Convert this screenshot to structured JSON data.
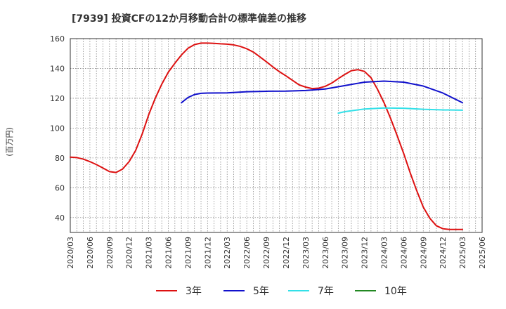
{
  "chart_data": {
    "type": "line",
    "title": "[7939]  投資CFの12か月移動合計の標準偏差の推移",
    "ylabel": "(百万円)",
    "xlabel": "",
    "ylim": [
      30,
      160
    ],
    "yticks": [
      40,
      60,
      80,
      100,
      120,
      140,
      160
    ],
    "xlim": [
      "2020-03",
      "2025-06"
    ],
    "xticks": [
      "2020/03",
      "2020/06",
      "2020/09",
      "2020/12",
      "2021/03",
      "2021/06",
      "2021/09",
      "2021/12",
      "2022/03",
      "2022/06",
      "2022/09",
      "2022/12",
      "2023/03",
      "2023/06",
      "2023/09",
      "2023/12",
      "2024/03",
      "2024/06",
      "2024/09",
      "2024/12",
      "2025/03",
      "2025/06"
    ],
    "grid": true,
    "legend_position": "bottom",
    "series": [
      {
        "name": "3年",
        "color": "#dd1111",
        "x": [
          "2020-03",
          "2020-04",
          "2020-05",
          "2020-06",
          "2020-07",
          "2020-08",
          "2020-09",
          "2020-10",
          "2020-11",
          "2020-12",
          "2021-01",
          "2021-02",
          "2021-03",
          "2021-04",
          "2021-05",
          "2021-06",
          "2021-07",
          "2021-08",
          "2021-09",
          "2021-10",
          "2021-11",
          "2021-12",
          "2022-01",
          "2022-02",
          "2022-03",
          "2022-04",
          "2022-05",
          "2022-06",
          "2022-07",
          "2022-08",
          "2022-09",
          "2022-10",
          "2022-11",
          "2022-12",
          "2023-01",
          "2023-02",
          "2023-03",
          "2023-04",
          "2023-05",
          "2023-06",
          "2023-07",
          "2023-08",
          "2023-09",
          "2023-10",
          "2023-11",
          "2023-12",
          "2024-01",
          "2024-02",
          "2024-03",
          "2024-04",
          "2024-05",
          "2024-06",
          "2024-07",
          "2024-08",
          "2024-09",
          "2024-10",
          "2024-11",
          "2024-12",
          "2025-01",
          "2025-02",
          "2025-03"
        ],
        "values": [
          80.5,
          80.2,
          79.2,
          77.5,
          75.5,
          73.2,
          70.8,
          70.2,
          72.5,
          77.5,
          85,
          96,
          109,
          120,
          129.5,
          137.5,
          143.5,
          149,
          153.5,
          156,
          157,
          157,
          156.8,
          156.5,
          156.3,
          155.8,
          154.8,
          153.2,
          151,
          147.8,
          144.5,
          141,
          137.8,
          135,
          132,
          129,
          127.5,
          126.5,
          126.8,
          128,
          130.2,
          133.2,
          136,
          138.5,
          139.2,
          138,
          133.8,
          126,
          117,
          106.5,
          95,
          83,
          70,
          58,
          47,
          39.5,
          34.5,
          32.5,
          32,
          32,
          32
        ]
      },
      {
        "name": "5年",
        "color": "#1111cc",
        "x": [
          "2021-08",
          "2021-09",
          "2021-10",
          "2021-11",
          "2021-12",
          "2022-03",
          "2022-06",
          "2022-09",
          "2022-12",
          "2023-03",
          "2023-06",
          "2023-09",
          "2023-12",
          "2024-03",
          "2024-06",
          "2024-09",
          "2024-12",
          "2025-03"
        ],
        "values": [
          117,
          120.5,
          122.5,
          123.3,
          123.5,
          123.6,
          124.4,
          124.7,
          124.8,
          125.2,
          126.2,
          128.5,
          130.8,
          131.5,
          130.8,
          128.2,
          123.5,
          117
        ]
      },
      {
        "name": "7年",
        "color": "#33e0e8",
        "x": [
          "2023-08",
          "2023-09",
          "2023-12",
          "2024-03",
          "2024-06",
          "2024-09",
          "2024-12",
          "2025-03"
        ],
        "values": [
          110,
          111,
          112.8,
          113.5,
          113.3,
          112.6,
          112.2,
          112
        ]
      },
      {
        "name": "10年",
        "color": "#228822",
        "x": [],
        "values": []
      }
    ]
  }
}
